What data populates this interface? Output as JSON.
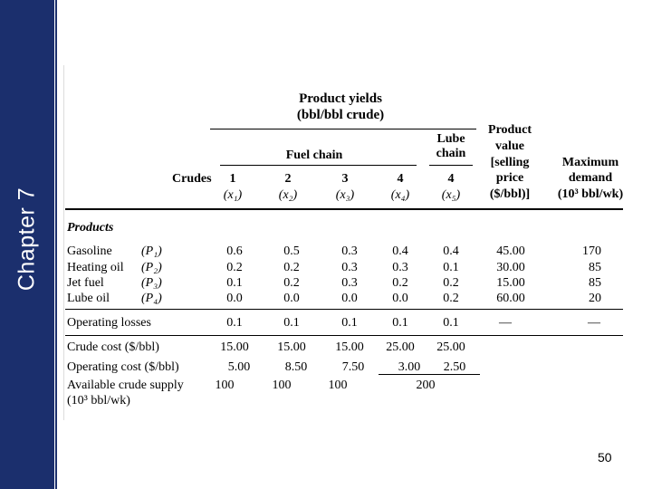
{
  "sidebar": {
    "title": "Chapter 7",
    "color": "#1b2f6d"
  },
  "page_number": "50",
  "table": {
    "header": {
      "product_yields": "Product yields",
      "yields_unit": "(bbl/bbl crude)",
      "fuel_chain": "Fuel chain",
      "lube_chain_1": "Lube",
      "lube_chain_2": "chain",
      "crudes": "Crudes",
      "product_value": [
        "Product",
        "value",
        "[selling",
        "price",
        "($/bbl)]"
      ],
      "max_demand": [
        "Maximum",
        "demand",
        "(10³ bbl/wk)"
      ],
      "columns": [
        {
          "num": "1",
          "var": "(x₁)"
        },
        {
          "num": "2",
          "var": "(x₂)"
        },
        {
          "num": "3",
          "var": "(x₃)"
        },
        {
          "num": "4",
          "var": "(x₄)"
        },
        {
          "num": "4",
          "var": "(x₅)"
        }
      ]
    },
    "products_label": "Products",
    "products": [
      {
        "name": "Gasoline",
        "sym": "(P₁)",
        "vals": [
          "0.6",
          "0.5",
          "0.3",
          "0.4",
          "0.4"
        ],
        "price": "45.00",
        "demand": "170"
      },
      {
        "name": "Heating oil",
        "sym": "(P₂)",
        "vals": [
          "0.2",
          "0.2",
          "0.3",
          "0.3",
          "0.1"
        ],
        "price": "30.00",
        "demand": "85"
      },
      {
        "name": "Jet fuel",
        "sym": "(P₃)",
        "vals": [
          "0.1",
          "0.2",
          "0.3",
          "0.2",
          "0.2"
        ],
        "price": "15.00",
        "demand": "85"
      },
      {
        "name": "Lube oil",
        "sym": "(P₄)",
        "vals": [
          "0.0",
          "0.0",
          "0.0",
          "0.0",
          "0.2"
        ],
        "price": "60.00",
        "demand": "20"
      }
    ],
    "losses": {
      "name": "Operating losses",
      "vals": [
        "0.1",
        "0.1",
        "0.1",
        "0.1",
        "0.1"
      ],
      "price": "—",
      "demand": "—"
    },
    "crude_cost": {
      "name": "Crude cost ($/bbl)",
      "vals": [
        "15.00",
        "15.00",
        "15.00",
        "25.00",
        "25.00"
      ]
    },
    "operating_cost": {
      "name": "Operating cost ($/bbl)",
      "vals": [
        "5.00",
        "8.50",
        "7.50",
        "3.00",
        "2.50"
      ]
    },
    "supply": {
      "name_1": "Available crude supply",
      "name_2": "(10³ bbl/wk)",
      "vals": [
        "100",
        "100",
        "100",
        "200"
      ]
    }
  }
}
